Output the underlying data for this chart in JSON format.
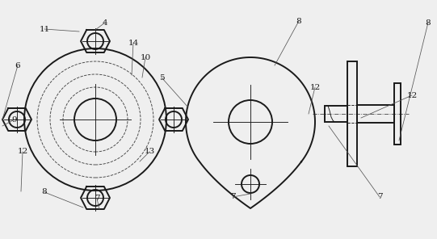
{
  "bg_color": "#efefef",
  "line_color": "#1a1a1a",
  "dashed_color": "#444444",
  "label_color": "#1a1a1a",
  "font_size": 7.5,
  "lw_main": 1.4,
  "lw_thin": 0.65
}
